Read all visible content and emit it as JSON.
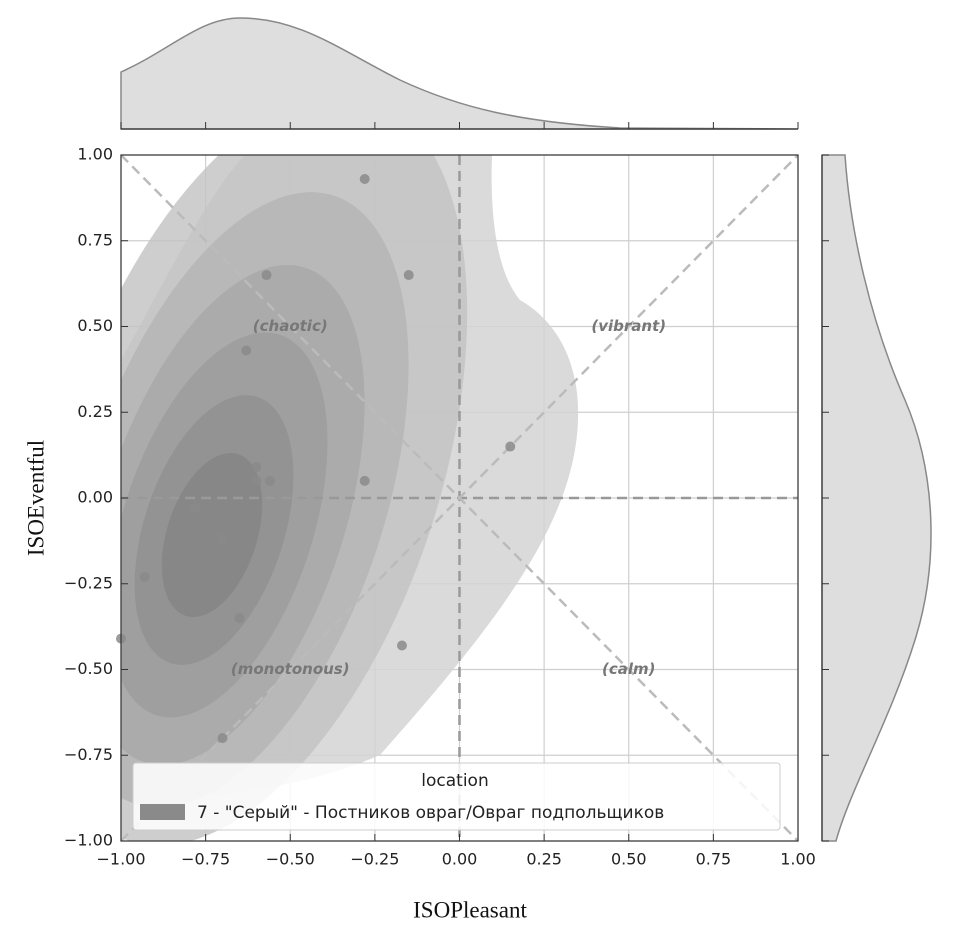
{
  "chart_data": {
    "type": "scatter",
    "x_label": "ISOPleasant",
    "y_label": "ISOEventful",
    "xlim": [
      -1,
      1
    ],
    "ylim": [
      -1,
      1
    ],
    "xticks": [
      {
        "value": -1,
        "label": "−1.00"
      },
      {
        "value": -0.75,
        "label": "−0.75"
      },
      {
        "value": -0.5,
        "label": "−0.50"
      },
      {
        "value": -0.25,
        "label": "−0.25"
      },
      {
        "value": 0,
        "label": "0.00"
      },
      {
        "value": 0.25,
        "label": "0.25"
      },
      {
        "value": 0.5,
        "label": "0.50"
      },
      {
        "value": 0.75,
        "label": "0.75"
      },
      {
        "value": 1,
        "label": "1.00"
      }
    ],
    "yticks": [
      {
        "value": -1,
        "label": "−1.00"
      },
      {
        "value": -0.75,
        "label": "−0.75"
      },
      {
        "value": -0.5,
        "label": "−0.50"
      },
      {
        "value": -0.25,
        "label": "−0.25"
      },
      {
        "value": 0,
        "label": "0.00"
      },
      {
        "value": 0.25,
        "label": "0.25"
      },
      {
        "value": 0.5,
        "label": "0.50"
      },
      {
        "value": 0.75,
        "label": "0.75"
      },
      {
        "value": 1,
        "label": "1.00"
      }
    ],
    "grid": true,
    "annotations": [
      "(chaotic)",
      "(vibrant)",
      "(monotonous)",
      "(calm)"
    ],
    "legend_title": "location",
    "series": [
      {
        "name": "7 - \"Серый\" - Постников овраг/Овраг подпольщиков",
        "color": "#8a8a8a",
        "x": [
          -0.28,
          -0.57,
          -0.15,
          -0.63,
          0.15,
          -0.6,
          -0.6,
          -0.56,
          -0.28,
          -0.78,
          -0.7,
          -0.93,
          -0.65,
          -0.17,
          -1.0,
          -0.7
        ],
        "values": [
          0.93,
          0.65,
          0.65,
          0.43,
          0.15,
          0.09,
          0.05,
          0.05,
          0.05,
          -0.03,
          -0.12,
          -0.23,
          -0.35,
          -0.43,
          -0.41,
          -0.7
        ]
      }
    ]
  }
}
